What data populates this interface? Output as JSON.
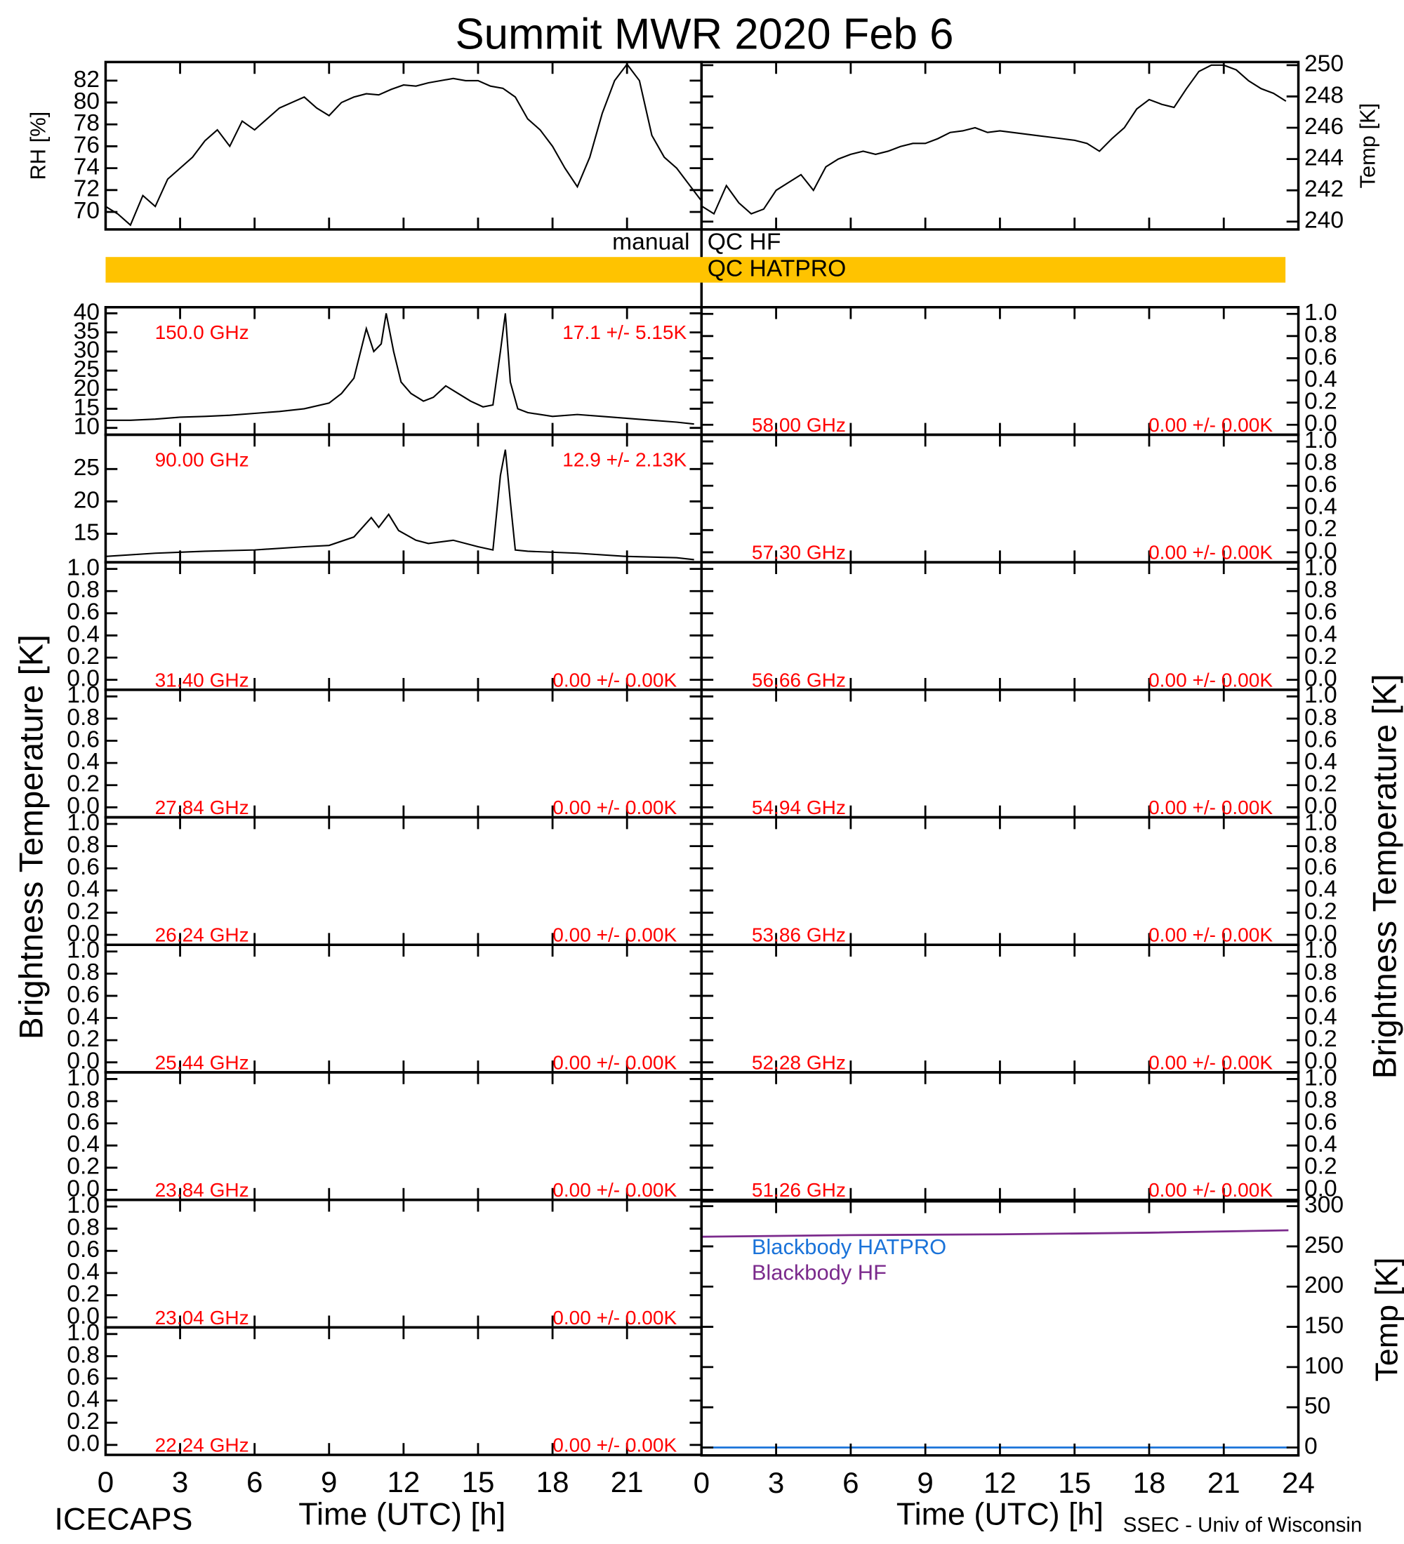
{
  "title": "Summit MWR 2020 Feb  6",
  "left_axis_label": "Brightness Temperature [K]",
  "right_axis_label": "Brightness Temperature [K]",
  "footer_left": "ICECAPS",
  "footer_right": "SSEC - Univ of Wisconsin",
  "x_axis_labels": [
    "Time (UTC) [h]",
    "Time (UTC) [h]"
  ],
  "qc": {
    "xlim": [
      0,
      24
    ],
    "rows": [
      {
        "source": "manual",
        "name": "QC HF",
        "color": "#ffc300",
        "segments": []
      },
      {
        "source": "manual",
        "name": "QC HATPRO",
        "color": "#ffc300",
        "segments": [
          [
            0,
            23.74
          ]
        ]
      }
    ]
  },
  "chart_data": [
    {
      "type": "line",
      "ylabel": "RH [%]",
      "color": "#000000",
      "xlim": [
        0,
        24
      ],
      "ylim": [
        68.4,
        83.7
      ],
      "yticks": [
        70,
        72,
        74,
        76,
        78,
        80,
        82
      ],
      "xticks": [
        0,
        3,
        6,
        9,
        12,
        15,
        18,
        21,
        24
      ],
      "x": [
        0,
        0.5,
        1,
        1.5,
        2,
        2.5,
        3,
        3.5,
        4,
        4.5,
        5,
        5.5,
        6,
        6.5,
        7,
        7.5,
        8,
        8.5,
        9,
        9.5,
        10,
        10.5,
        11,
        11.5,
        12,
        12.5,
        13,
        13.5,
        14,
        14.5,
        15,
        15.5,
        16,
        16.5,
        17,
        17.5,
        18,
        18.5,
        19,
        19.5,
        20,
        20.5,
        21,
        21.5,
        22,
        22.5,
        23,
        23.5,
        24
      ],
      "values": [
        70.5,
        69.8,
        68.8,
        71.5,
        70.5,
        73,
        74,
        75,
        76.5,
        77.5,
        76,
        78.3,
        77.5,
        78.5,
        79.5,
        80,
        80.5,
        79.5,
        78.8,
        80,
        80.5,
        80.8,
        80.7,
        81.2,
        81.6,
        81.5,
        81.8,
        82,
        82.2,
        82,
        82,
        81.5,
        81.3,
        80.5,
        78.5,
        77.5,
        76,
        74,
        72.3,
        75,
        79,
        82,
        83.5,
        82,
        77,
        75,
        74,
        72.5,
        71
      ]
    },
    {
      "type": "line",
      "ylabel": "Temp [K]",
      "color": "#000000",
      "xlim": [
        0,
        24
      ],
      "ylim": [
        239.5,
        250.2
      ],
      "yticks": [
        240,
        242,
        244,
        246,
        248,
        250
      ],
      "xticks": [
        0,
        3,
        6,
        9,
        12,
        15,
        18,
        21,
        24
      ],
      "x": [
        0,
        0.5,
        1,
        1.5,
        2,
        2.5,
        3,
        3.5,
        4,
        4.5,
        5,
        5.5,
        6,
        6.5,
        7,
        7.5,
        8,
        8.5,
        9,
        9.5,
        10,
        10.5,
        11,
        11.5,
        12,
        12.5,
        13,
        13.5,
        14,
        14.5,
        15,
        15.5,
        16,
        16.5,
        17,
        17.5,
        18,
        18.5,
        19,
        19.5,
        20,
        20.5,
        21,
        21.5,
        22,
        22.5,
        23,
        23.5
      ],
      "values": [
        241,
        240.5,
        242.3,
        241.2,
        240.5,
        240.8,
        242,
        242.5,
        243,
        242,
        243.5,
        244,
        244.3,
        244.5,
        244.3,
        244.5,
        244.8,
        245,
        245,
        245.3,
        245.7,
        245.8,
        246,
        245.7,
        245.8,
        245.7,
        245.6,
        245.5,
        245.4,
        245.3,
        245.2,
        245,
        244.5,
        245.3,
        246,
        247.2,
        247.8,
        247.5,
        247.3,
        248.5,
        249.6,
        250,
        250,
        249.7,
        249,
        248.5,
        248.2,
        247.7
      ]
    },
    {
      "type": "line",
      "label": "150.0 GHz",
      "stats": "17.1 +/-  5.15K",
      "color": "#000000",
      "xlim": [
        0,
        24
      ],
      "ylim": [
        8.2,
        41.6
      ],
      "yticks": [
        10,
        15,
        20,
        25,
        30,
        35,
        40
      ],
      "xticks": [
        0,
        3,
        6,
        9,
        12,
        15,
        18,
        21,
        24
      ],
      "x": [
        0,
        1,
        2,
        3,
        4,
        5,
        6,
        7,
        8,
        9,
        9.5,
        10,
        10.5,
        10.8,
        11.1,
        11.3,
        11.6,
        11.9,
        12.3,
        12.8,
        13.2,
        13.7,
        14.2,
        14.7,
        15.2,
        15.6,
        15.9,
        16.1,
        16.3,
        16.6,
        17,
        18,
        19,
        20,
        21,
        22,
        23,
        23.7
      ],
      "values": [
        12,
        12,
        12.3,
        12.8,
        13,
        13.3,
        13.8,
        14.3,
        15,
        16.5,
        19,
        23,
        36,
        30,
        32,
        40,
        30,
        22,
        19,
        17,
        18,
        21,
        19,
        17,
        15.5,
        16,
        30,
        40,
        22,
        15,
        14,
        13,
        13.5,
        13,
        12.5,
        12,
        11.5,
        11
      ]
    },
    {
      "type": "line",
      "label": "90.00 GHz",
      "stats": "12.9 +/-  2.13K",
      "color": "#000000",
      "xlim": [
        0,
        24
      ],
      "ylim": [
        10.6,
        30.3
      ],
      "yticks": [
        15,
        20,
        25
      ],
      "xticks": [
        0,
        3,
        6,
        9,
        12,
        15,
        18,
        21,
        24
      ],
      "x": [
        0,
        2,
        4,
        6,
        8,
        9,
        10,
        10.7,
        11,
        11.4,
        11.8,
        12.5,
        13,
        14,
        15,
        15.6,
        15.9,
        16.1,
        16.3,
        16.5,
        17,
        19,
        21,
        23,
        23.7
      ],
      "values": [
        11.5,
        12,
        12.3,
        12.5,
        13,
        13.2,
        14.5,
        17.5,
        16,
        18,
        15.5,
        14,
        13.5,
        14,
        13,
        12.5,
        24,
        28,
        20,
        12.5,
        12.3,
        12,
        11.5,
        11.3,
        11
      ]
    },
    {
      "type": "line",
      "label": "31.40 GHz",
      "stats": "0.00 +/-  0.00K",
      "xlim": [
        0,
        24
      ],
      "ylim": [
        -0.09,
        1.06
      ],
      "yticks": [
        {
          "value": 0,
          "label": "0.0"
        },
        0.2,
        0.4,
        0.6,
        0.8,
        {
          "value": 1,
          "label": "1.0"
        }
      ],
      "xticks": [
        0,
        3,
        6,
        9,
        12,
        15,
        18,
        21,
        24
      ]
    },
    {
      "type": "line",
      "label": "27.84 GHz",
      "stats": "0.00 +/-  0.00K",
      "xlim": [
        0,
        24
      ],
      "ylim": [
        -0.09,
        1.06
      ],
      "yticks": [
        {
          "value": 0,
          "label": "0.0"
        },
        0.2,
        0.4,
        0.6,
        0.8,
        {
          "value": 1,
          "label": "1.0"
        }
      ],
      "xticks": [
        0,
        3,
        6,
        9,
        12,
        15,
        18,
        21,
        24
      ]
    },
    {
      "type": "line",
      "label": "26.24 GHz",
      "stats": "0.00 +/-  0.00K",
      "xlim": [
        0,
        24
      ],
      "ylim": [
        -0.09,
        1.06
      ],
      "yticks": [
        {
          "value": 0,
          "label": "0.0"
        },
        0.2,
        0.4,
        0.6,
        0.8,
        {
          "value": 1,
          "label": "1.0"
        }
      ],
      "xticks": [
        0,
        3,
        6,
        9,
        12,
        15,
        18,
        21,
        24
      ]
    },
    {
      "type": "line",
      "label": "25.44 GHz",
      "stats": "0.00 +/-  0.00K",
      "xlim": [
        0,
        24
      ],
      "ylim": [
        -0.09,
        1.06
      ],
      "yticks": [
        {
          "value": 0,
          "label": "0.0"
        },
        0.2,
        0.4,
        0.6,
        0.8,
        {
          "value": 1,
          "label": "1.0"
        }
      ],
      "xticks": [
        0,
        3,
        6,
        9,
        12,
        15,
        18,
        21,
        24
      ]
    },
    {
      "type": "line",
      "label": "23.84 GHz",
      "stats": "0.00 +/-  0.00K",
      "xlim": [
        0,
        24
      ],
      "ylim": [
        -0.09,
        1.06
      ],
      "yticks": [
        {
          "value": 0,
          "label": "0.0"
        },
        0.2,
        0.4,
        0.6,
        0.8,
        {
          "value": 1,
          "label": "1.0"
        }
      ],
      "xticks": [
        0,
        3,
        6,
        9,
        12,
        15,
        18,
        21,
        24
      ]
    },
    {
      "type": "line",
      "label": "23.04 GHz",
      "stats": "0.00 +/-  0.00K",
      "xlim": [
        0,
        24
      ],
      "ylim": [
        -0.09,
        1.06
      ],
      "yticks": [
        {
          "value": 0,
          "label": "0.0"
        },
        0.2,
        0.4,
        0.6,
        0.8,
        {
          "value": 1,
          "label": "1.0"
        }
      ],
      "xticks": [
        0,
        3,
        6,
        9,
        12,
        15,
        18,
        21,
        24
      ]
    },
    {
      "type": "line",
      "label": "22.24 GHz",
      "stats": "0.00 +/-  0.00K",
      "xlim": [
        0,
        24
      ],
      "ylim": [
        -0.09,
        1.06
      ],
      "yticks": [
        {
          "value": 0,
          "label": "0.0"
        },
        0.2,
        0.4,
        0.6,
        0.8,
        {
          "value": 1,
          "label": "1.0"
        }
      ],
      "xticks": [
        0,
        3,
        6,
        9,
        12,
        15,
        18,
        21
      ],
      "xtick_labels": true
    },
    {
      "type": "line",
      "label": "58.00 GHz",
      "stats": "0.00 +/-  0.00K",
      "xlim": [
        0,
        24
      ],
      "ylim": [
        -0.09,
        1.06
      ],
      "yticks": [
        {
          "value": 0,
          "label": "0.0"
        },
        0.2,
        0.4,
        0.6,
        0.8,
        {
          "value": 1,
          "label": "1.0"
        }
      ],
      "xticks": [
        0,
        3,
        6,
        9,
        12,
        15,
        18,
        21,
        24
      ]
    },
    {
      "type": "line",
      "label": "57.30 GHz",
      "stats": "0.00 +/-  0.00K",
      "xlim": [
        0,
        24
      ],
      "ylim": [
        -0.09,
        1.06
      ],
      "yticks": [
        {
          "value": 0,
          "label": "0.0"
        },
        0.2,
        0.4,
        0.6,
        0.8,
        {
          "value": 1,
          "label": "1.0"
        }
      ],
      "xticks": [
        0,
        3,
        6,
        9,
        12,
        15,
        18,
        21,
        24
      ]
    },
    {
      "type": "line",
      "label": "56.66 GHz",
      "stats": "0.00 +/-  0.00K",
      "xlim": [
        0,
        24
      ],
      "ylim": [
        -0.09,
        1.06
      ],
      "yticks": [
        {
          "value": 0,
          "label": "0.0"
        },
        0.2,
        0.4,
        0.6,
        0.8,
        {
          "value": 1,
          "label": "1.0"
        }
      ],
      "xticks": [
        0,
        3,
        6,
        9,
        12,
        15,
        18,
        21,
        24
      ]
    },
    {
      "type": "line",
      "label": "54.94 GHz",
      "stats": "0.00 +/-  0.00K",
      "xlim": [
        0,
        24
      ],
      "ylim": [
        -0.09,
        1.06
      ],
      "yticks": [
        {
          "value": 0,
          "label": "0.0"
        },
        0.2,
        0.4,
        0.6,
        0.8,
        {
          "value": 1,
          "label": "1.0"
        }
      ],
      "xticks": [
        0,
        3,
        6,
        9,
        12,
        15,
        18,
        21,
        24
      ]
    },
    {
      "type": "line",
      "label": "53.86 GHz",
      "stats": "0.00 +/-  0.00K",
      "xlim": [
        0,
        24
      ],
      "ylim": [
        -0.09,
        1.06
      ],
      "yticks": [
        {
          "value": 0,
          "label": "0.0"
        },
        0.2,
        0.4,
        0.6,
        0.8,
        {
          "value": 1,
          "label": "1.0"
        }
      ],
      "xticks": [
        0,
        3,
        6,
        9,
        12,
        15,
        18,
        21,
        24
      ]
    },
    {
      "type": "line",
      "label": "52.28 GHz",
      "stats": "0.00 +/-  0.00K",
      "xlim": [
        0,
        24
      ],
      "ylim": [
        -0.09,
        1.06
      ],
      "yticks": [
        {
          "value": 0,
          "label": "0.0"
        },
        0.2,
        0.4,
        0.6,
        0.8,
        {
          "value": 1,
          "label": "1.0"
        }
      ],
      "xticks": [
        0,
        3,
        6,
        9,
        12,
        15,
        18,
        21,
        24
      ]
    },
    {
      "type": "line",
      "label": "51.26 GHz",
      "stats": "0.00 +/-  0.00K",
      "xlim": [
        0,
        24
      ],
      "ylim": [
        -0.09,
        1.06
      ],
      "yticks": [
        {
          "value": 0,
          "label": "0.0"
        },
        0.2,
        0.4,
        0.6,
        0.8,
        {
          "value": 1,
          "label": "1.0"
        }
      ],
      "xticks": [
        0,
        3,
        6,
        9,
        12,
        15,
        18,
        21,
        24
      ]
    },
    {
      "type": "line",
      "ylabel": "Temp [K]",
      "legend": "upper left",
      "xlim": [
        0,
        24
      ],
      "ylim": [
        -9.8,
        306
      ],
      "yticks": [
        0,
        50,
        100,
        150,
        200,
        250,
        300
      ],
      "xticks": [
        0,
        3,
        6,
        9,
        12,
        15,
        18,
        21,
        24
      ],
      "xtick_labels": true,
      "series": [
        {
          "name": "Blackbody HATPRO",
          "color": "#1a73d9",
          "x": [
            0,
            6,
            12,
            18,
            23.6
          ],
          "values": [
            0,
            0,
            0,
            0,
            0
          ]
        },
        {
          "name": "Blackbody HF",
          "color": "#7b2a8c",
          "x": [
            0,
            6,
            12,
            18,
            23.6
          ],
          "values": [
            262,
            264,
            265,
            267,
            270
          ]
        }
      ]
    }
  ]
}
